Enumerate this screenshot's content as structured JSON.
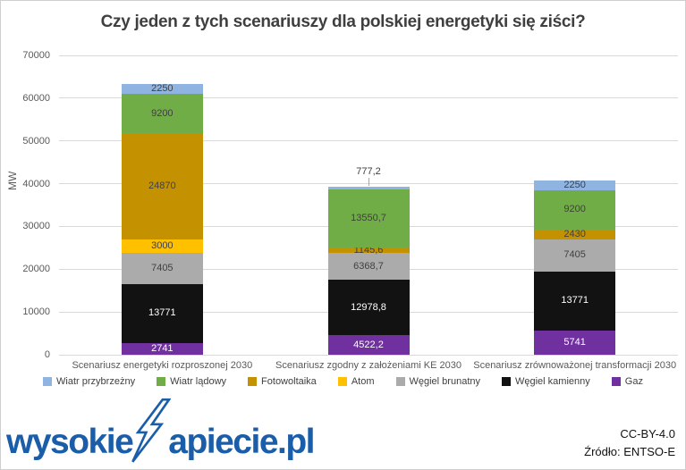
{
  "title": "Czy jeden z tych scenariuszy dla polskiej energetyki się ziści?",
  "chart_data": {
    "type": "bar",
    "stacked": true,
    "title": "Czy jeden z tych scenariuszy dla polskiej energetyki się ziści?",
    "xlabel": "",
    "ylabel": "MW",
    "ylim": [
      0,
      70000
    ],
    "ytick_step": 10000,
    "grid": true,
    "legend_position": "bottom",
    "categories": [
      "Scenariusz energetyki rozproszonej 2030",
      "Scenariusz zgodny z założeniami KE 2030",
      "Scenariusz zrównoważonej transformacji 2030"
    ],
    "series": [
      {
        "name": "Gaz",
        "color": "#7030a0",
        "label_color": "#ffffff",
        "values": [
          2741,
          4522.2,
          5741
        ],
        "labels": [
          "2741",
          "4522,2",
          "5741"
        ]
      },
      {
        "name": "Węgiel kamienny",
        "color": "#121212",
        "label_color": "#ffffff",
        "values": [
          13771,
          12978.8,
          13771
        ],
        "labels": [
          "13771",
          "12978,8",
          "13771"
        ]
      },
      {
        "name": "Węgiel brunatny",
        "color": "#ababab",
        "label_color": "#3f3f3f",
        "values": [
          7405,
          6368.7,
          7405
        ],
        "labels": [
          "7405",
          "6368,7",
          "7405"
        ]
      },
      {
        "name": "Atom",
        "color": "#ffc000",
        "label_color": "#3f3f3f",
        "values": [
          3000,
          0,
          0
        ],
        "labels": [
          "3000",
          "",
          ""
        ]
      },
      {
        "name": "Fotowoltaika",
        "color": "#c49200",
        "label_color": "#3f3f3f",
        "values": [
          24870,
          1145.6,
          2430
        ],
        "labels": [
          "24870",
          "1145,6",
          "2430"
        ]
      },
      {
        "name": "Wiatr lądowy",
        "color": "#71ad47",
        "label_color": "#3f3f3f",
        "values": [
          9200,
          13550.7,
          9200
        ],
        "labels": [
          "9200",
          "13550,7",
          "9200"
        ]
      },
      {
        "name": "Wiatr przybrzeżny",
        "color": "#8fb4e2",
        "label_color": "#3f3f3f",
        "values": [
          2250,
          777.2,
          2250
        ],
        "labels": [
          "2250",
          "777,2",
          "2250"
        ],
        "outside_labels": [
          false,
          true,
          false
        ]
      }
    ],
    "legend_order": [
      "Wiatr przybrzeżny",
      "Wiatr lądowy",
      "Fotowoltaika",
      "Atom",
      "Węgiel brunatny",
      "Węgiel kamienny",
      "Gaz"
    ]
  },
  "footer": {
    "logo": {
      "left": "wysokie",
      "right": "apiecie.pl",
      "color": "#1a5da8"
    },
    "license": "CC-BY-4.0",
    "source": "Źródło: ENTSO-E"
  }
}
